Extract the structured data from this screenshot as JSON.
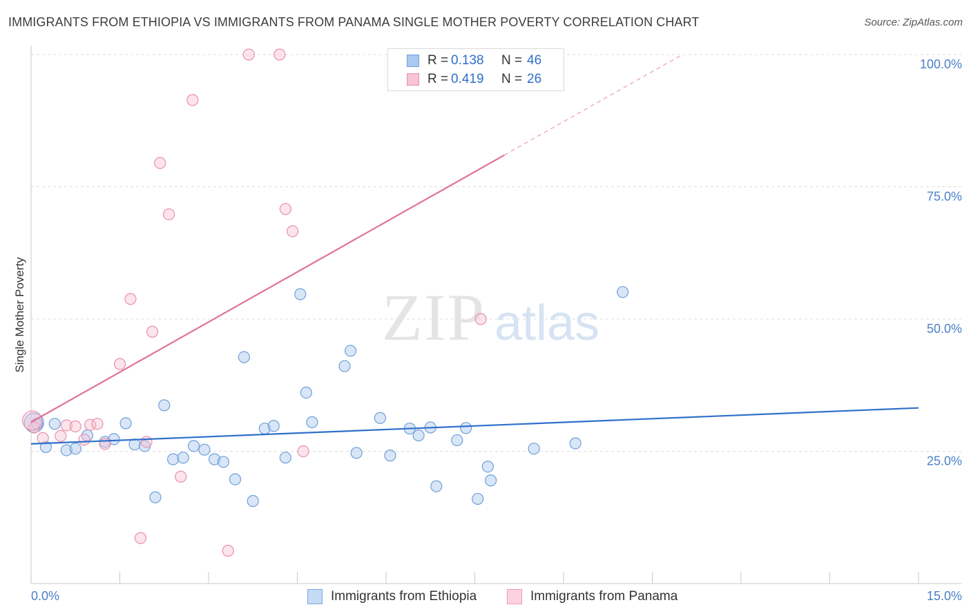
{
  "title": "IMMIGRANTS FROM ETHIOPIA VS IMMIGRANTS FROM PANAMA SINGLE MOTHER POVERTY CORRELATION CHART",
  "source": "Source: ZipAtlas.com",
  "watermark": {
    "zip": "ZIP",
    "atlas": "atlas"
  },
  "legend": {
    "rows": [
      {
        "r_label": "R =",
        "r_value": "0.138",
        "n_label": "N =",
        "n_value": "46",
        "color": "#aac8f0",
        "border": "#6f9fd8"
      },
      {
        "r_label": "R =",
        "r_value": "0.419",
        "n_label": "N =",
        "n_value": "26",
        "color": "#f8c4d3",
        "border": "#e890ab"
      }
    ]
  },
  "bottom_legend": [
    {
      "label": "Immigrants from Ethiopia",
      "color": "#c5daf5",
      "border": "#7fa8de"
    },
    {
      "label": "Immigrants from Panama",
      "color": "#fbd3df",
      "border": "#ea9bb3"
    }
  ],
  "chart_data": {
    "type": "scatter",
    "xlabel": "",
    "ylabel": "Single Mother Poverty",
    "xlim": [
      0,
      15
    ],
    "ylim": [
      0,
      100
    ],
    "x_tick_labels": [
      {
        "value": 0,
        "label": "0.0%"
      },
      {
        "value": 15,
        "label": "15.0%"
      }
    ],
    "y_tick_labels": [
      {
        "value": 25,
        "label": "25.0%"
      },
      {
        "value": 50,
        "label": "50.0%"
      },
      {
        "value": 75,
        "label": "75.0%"
      },
      {
        "value": 100,
        "label": "100.0%"
      }
    ],
    "series": [
      {
        "name": "Immigrants from Ethiopia",
        "color": "#6f9fd8",
        "fill": "rgba(170,200,240,0.45)",
        "trend": {
          "x0": 0,
          "y0": 26.4,
          "x1": 15,
          "y1": 33.2,
          "dashed_x1": 15
        },
        "points": [
          [
            0.05,
            30.4
          ],
          [
            0.1,
            30.2
          ],
          [
            0.25,
            25.8
          ],
          [
            0.4,
            30.2
          ],
          [
            0.6,
            25.2
          ],
          [
            0.75,
            25.5
          ],
          [
            0.95,
            28.0
          ],
          [
            1.25,
            26.8
          ],
          [
            1.4,
            27.3
          ],
          [
            1.6,
            30.3
          ],
          [
            1.75,
            26.3
          ],
          [
            1.92,
            26.0
          ],
          [
            2.1,
            16.3
          ],
          [
            2.25,
            33.7
          ],
          [
            2.4,
            23.5
          ],
          [
            2.57,
            23.8
          ],
          [
            2.75,
            26.0
          ],
          [
            2.93,
            25.3
          ],
          [
            3.1,
            23.5
          ],
          [
            3.25,
            23.0
          ],
          [
            3.45,
            19.7
          ],
          [
            3.6,
            42.8
          ],
          [
            3.75,
            15.6
          ],
          [
            3.95,
            29.3
          ],
          [
            4.1,
            29.8
          ],
          [
            4.3,
            23.8
          ],
          [
            4.55,
            54.7
          ],
          [
            4.65,
            36.1
          ],
          [
            4.75,
            30.5
          ],
          [
            5.3,
            41.1
          ],
          [
            5.4,
            44.0
          ],
          [
            5.5,
            24.7
          ],
          [
            5.9,
            31.3
          ],
          [
            6.07,
            24.2
          ],
          [
            6.4,
            29.3
          ],
          [
            6.55,
            28.0
          ],
          [
            6.75,
            29.5
          ],
          [
            6.85,
            18.4
          ],
          [
            7.2,
            27.1
          ],
          [
            7.35,
            29.4
          ],
          [
            7.55,
            16.0
          ],
          [
            7.72,
            22.1
          ],
          [
            7.77,
            19.5
          ],
          [
            8.5,
            25.5
          ],
          [
            9.2,
            26.5
          ],
          [
            10.0,
            55.1
          ]
        ]
      },
      {
        "name": "Immigrants from Panama",
        "color": "#e890ab",
        "fill": "rgba(248,196,211,0.45)",
        "trend": {
          "x0": 0,
          "y0": 30.5,
          "x1": 8.0,
          "y1": 81.0,
          "dashed_x1": 11.0
        },
        "points": [
          [
            0.05,
            29.5
          ],
          [
            0.2,
            27.5
          ],
          [
            0.5,
            27.9
          ],
          [
            0.6,
            29.9
          ],
          [
            0.75,
            29.7
          ],
          [
            0.9,
            27.2
          ],
          [
            1.0,
            30.0
          ],
          [
            1.12,
            30.2
          ],
          [
            1.25,
            26.4
          ],
          [
            1.5,
            41.5
          ],
          [
            1.68,
            53.8
          ],
          [
            1.85,
            8.6
          ],
          [
            1.95,
            26.8
          ],
          [
            2.05,
            47.6
          ],
          [
            2.18,
            79.5
          ],
          [
            2.33,
            69.8
          ],
          [
            2.53,
            20.2
          ],
          [
            2.73,
            91.4
          ],
          [
            3.33,
            6.2
          ],
          [
            3.68,
            100.0
          ],
          [
            4.2,
            100.0
          ],
          [
            4.3,
            70.8
          ],
          [
            4.42,
            66.6
          ],
          [
            4.6,
            25.0
          ],
          [
            7.6,
            50.0
          ],
          [
            0.02,
            30.8
          ]
        ]
      }
    ]
  }
}
